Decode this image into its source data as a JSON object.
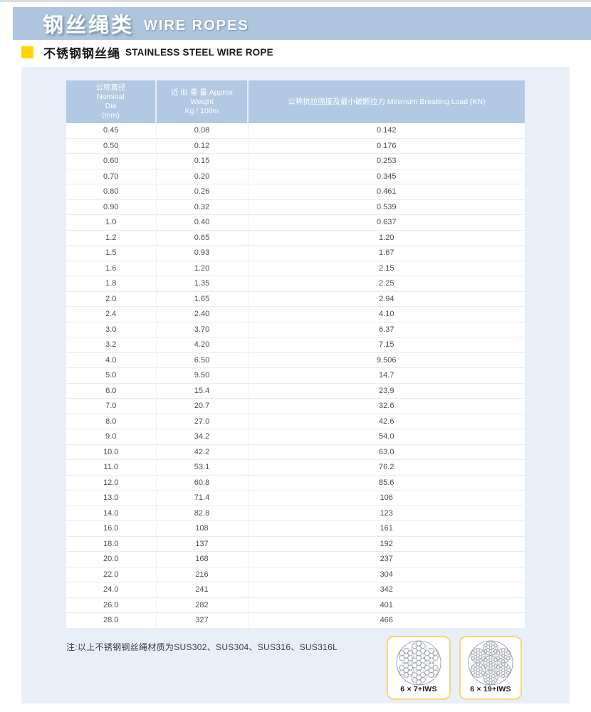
{
  "page": {
    "title_zh": "钢丝绳类",
    "title_en": "WIRE ROPES",
    "subtitle_zh": "不锈钢钢丝绳",
    "subtitle_en": "STAINLESS STEEL WIRE ROPE",
    "note": "注:以上不锈钢钢丝绳材质为SUS302、SUS304、SUS316、SUS316L"
  },
  "colors": {
    "header_bar_blue": "#adc5dd",
    "table_header_blue": "#b2c9e3",
    "content_background": "#e9eff8",
    "accent_yellow": "#ffd600",
    "card_border_yellow": "#f3d976"
  },
  "table": {
    "columns": [
      {
        "line1": "公称直径",
        "line2": "Nominal",
        "line3": "Dia",
        "line4": "(mm)"
      },
      {
        "line1": "近 似 重 量 Approx Weight",
        "line2": "Kg / 100m"
      },
      {
        "line1": "公称抗拉强度及最小破断拉力 Minimum Breaking Load (KN)"
      }
    ],
    "rows": [
      [
        "0.45",
        "0.08",
        "0.142"
      ],
      [
        "0.50",
        "0.12",
        "0.176"
      ],
      [
        "0.60",
        "0.15",
        "0.253"
      ],
      [
        "0.70",
        "0.20",
        "0.345"
      ],
      [
        "0.80",
        "0.26",
        "0.461"
      ],
      [
        "0.90",
        "0.32",
        "0.539"
      ],
      [
        "1.0",
        "0.40",
        "0.637"
      ],
      [
        "1.2",
        "0.65",
        "1.20"
      ],
      [
        "1.5",
        "0.93",
        "1.67"
      ],
      [
        "1.6",
        "1.20",
        "2.15"
      ],
      [
        "1.8",
        "1.35",
        "2.25"
      ],
      [
        "2.0",
        "1.65",
        "2.94"
      ],
      [
        "2.4",
        "2.40",
        "4.10"
      ],
      [
        "3.0",
        "3.70",
        "6.37"
      ],
      [
        "3.2",
        "4.20",
        "7.15"
      ],
      [
        "4.0",
        "6.50",
        "9.506"
      ],
      [
        "5.0",
        "9.50",
        "14.7"
      ],
      [
        "6.0",
        "15.4",
        "23.9"
      ],
      [
        "7.0",
        "20.7",
        "32.6"
      ],
      [
        "8.0",
        "27.0",
        "42.6"
      ],
      [
        "9.0",
        "34.2",
        "54.0"
      ],
      [
        "10.0",
        "42.2",
        "63.0"
      ],
      [
        "11.0",
        "53.1",
        "76.2"
      ],
      [
        "12.0",
        "60.8",
        "85.6"
      ],
      [
        "13.0",
        "71.4",
        "106"
      ],
      [
        "14.0",
        "82.8",
        "123"
      ],
      [
        "16.0",
        "108",
        "161"
      ],
      [
        "18.0",
        "137",
        "192"
      ],
      [
        "20.0",
        "168",
        "237"
      ],
      [
        "22.0",
        "216",
        "304"
      ],
      [
        "24.0",
        "241",
        "342"
      ],
      [
        "26.0",
        "282",
        "401"
      ],
      [
        "28.0",
        "327",
        "466"
      ]
    ]
  },
  "diagrams": [
    {
      "label": "6 × 7+IWS",
      "type": "6x7"
    },
    {
      "label": "6 × 19+IWS",
      "type": "6x19"
    }
  ]
}
